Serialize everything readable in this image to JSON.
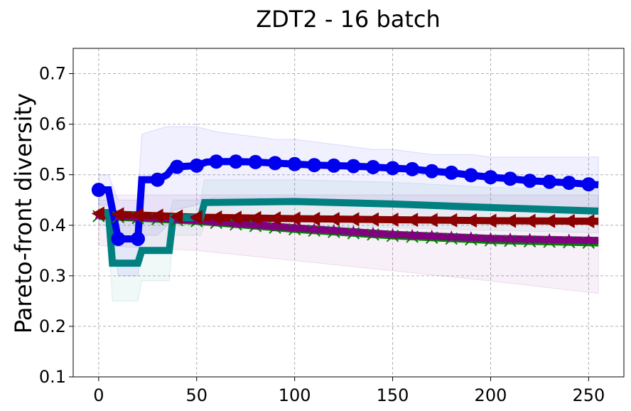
{
  "chart_data": {
    "type": "line",
    "title": "ZDT2 - 16 batch",
    "xlabel": "",
    "ylabel": "Pareto-front diversity",
    "xlim": [
      -13,
      268
    ],
    "ylim": [
      0.1,
      0.75
    ],
    "xticks": [
      0,
      50,
      100,
      150,
      200,
      250
    ],
    "yticks": [
      0.1,
      0.2,
      0.3,
      0.4,
      0.5,
      0.6,
      0.7
    ],
    "xtick_labels": [
      "0",
      "50",
      "100",
      "150",
      "200",
      "250"
    ],
    "ytick_labels": [
      "0.1",
      "0.2",
      "0.3",
      "0.4",
      "0.5",
      "0.6",
      "0.7"
    ],
    "grid": true,
    "legend": "none",
    "series": [
      {
        "color": "#0000ee",
        "marker": "circle",
        "x": [
          0,
          5,
          10,
          20,
          22,
          30,
          35,
          38,
          50,
          55,
          60,
          70,
          80,
          90,
          100,
          110,
          120,
          130,
          140,
          150,
          160,
          170,
          180,
          190,
          200,
          210,
          220,
          230,
          240,
          250,
          255
        ],
        "y": [
          0.47,
          0.47,
          0.373,
          0.373,
          0.49,
          0.49,
          0.5,
          0.515,
          0.518,
          0.525,
          0.526,
          0.526,
          0.525,
          0.523,
          0.521,
          0.519,
          0.518,
          0.517,
          0.515,
          0.513,
          0.511,
          0.507,
          0.504,
          0.499,
          0.495,
          0.492,
          0.488,
          0.486,
          0.484,
          0.481,
          0.48
        ],
        "marker_x": [
          0,
          10,
          20,
          30,
          40,
          50,
          60,
          70,
          80,
          90,
          100,
          110,
          120,
          130,
          140,
          150,
          160,
          170,
          180,
          190,
          200,
          210,
          220,
          230,
          240,
          250
        ],
        "band_upper": [
          0.5,
          0.5,
          0.45,
          0.45,
          0.58,
          0.59,
          0.595,
          0.595,
          0.595,
          0.59,
          0.585,
          0.58,
          0.575,
          0.57,
          0.57,
          0.565,
          0.56,
          0.555,
          0.55,
          0.55,
          0.545,
          0.54,
          0.54,
          0.54,
          0.535,
          0.535,
          0.535,
          0.535,
          0.535,
          0.535,
          0.535
        ],
        "band_lower": [
          0.44,
          0.44,
          0.3,
          0.3,
          0.38,
          0.38,
          0.4,
          0.43,
          0.44,
          0.45,
          0.455,
          0.455,
          0.455,
          0.45,
          0.45,
          0.45,
          0.445,
          0.445,
          0.44,
          0.44,
          0.435,
          0.435,
          0.43,
          0.43,
          0.43,
          0.43,
          0.43,
          0.43,
          0.43,
          0.43,
          0.43
        ]
      },
      {
        "color": "#008080",
        "marker": "none",
        "x": [
          0,
          5,
          7,
          20,
          22,
          36,
          38,
          52,
          54,
          100,
          150,
          200,
          255
        ],
        "y": [
          0.425,
          0.425,
          0.325,
          0.325,
          0.35,
          0.35,
          0.415,
          0.415,
          0.445,
          0.447,
          0.442,
          0.435,
          0.428
        ],
        "band_upper": [
          0.45,
          0.45,
          0.42,
          0.42,
          0.42,
          0.42,
          0.45,
          0.45,
          0.49,
          0.49,
          0.485,
          0.475,
          0.47
        ],
        "band_lower": [
          0.4,
          0.4,
          0.25,
          0.25,
          0.29,
          0.29,
          0.38,
          0.38,
          0.4,
          0.4,
          0.395,
          0.39,
          0.385
        ]
      },
      {
        "color": "#8b0000",
        "marker": "triangle-left",
        "x": [
          0,
          50,
          100,
          150,
          200,
          255
        ],
        "y": [
          0.423,
          0.416,
          0.413,
          0.411,
          0.409,
          0.408
        ],
        "marker_x": [
          0,
          10,
          20,
          30,
          40,
          50,
          60,
          70,
          80,
          90,
          100,
          110,
          120,
          130,
          140,
          150,
          160,
          170,
          180,
          190,
          200,
          210,
          220,
          230,
          240,
          250
        ]
      },
      {
        "color": "#800080",
        "marker": "star",
        "x": [
          0,
          50,
          100,
          150,
          200,
          255
        ],
        "y": [
          0.42,
          0.41,
          0.395,
          0.382,
          0.374,
          0.37
        ],
        "marker_x": [
          0,
          10,
          20,
          30,
          40,
          50,
          60,
          70,
          80,
          90,
          100,
          110,
          120,
          130,
          140,
          150,
          160,
          170,
          180,
          190,
          200,
          210,
          220,
          230,
          240,
          250
        ],
        "band_upper": [
          0.46,
          0.46,
          0.46,
          0.46,
          0.46,
          0.46
        ],
        "band_lower": [
          0.36,
          0.35,
          0.33,
          0.31,
          0.29,
          0.265
        ]
      },
      {
        "color": "#008000",
        "marker": "x",
        "x": [
          0,
          50,
          100,
          150,
          200,
          255
        ],
        "y": [
          0.418,
          0.408,
          0.392,
          0.379,
          0.37,
          0.365
        ],
        "marker_x": [
          0,
          10,
          20,
          30,
          40,
          50,
          60,
          70,
          80,
          90,
          100,
          110,
          120,
          130,
          140,
          150,
          160,
          170,
          180,
          190,
          200,
          210,
          220,
          230,
          240,
          250
        ]
      }
    ]
  }
}
